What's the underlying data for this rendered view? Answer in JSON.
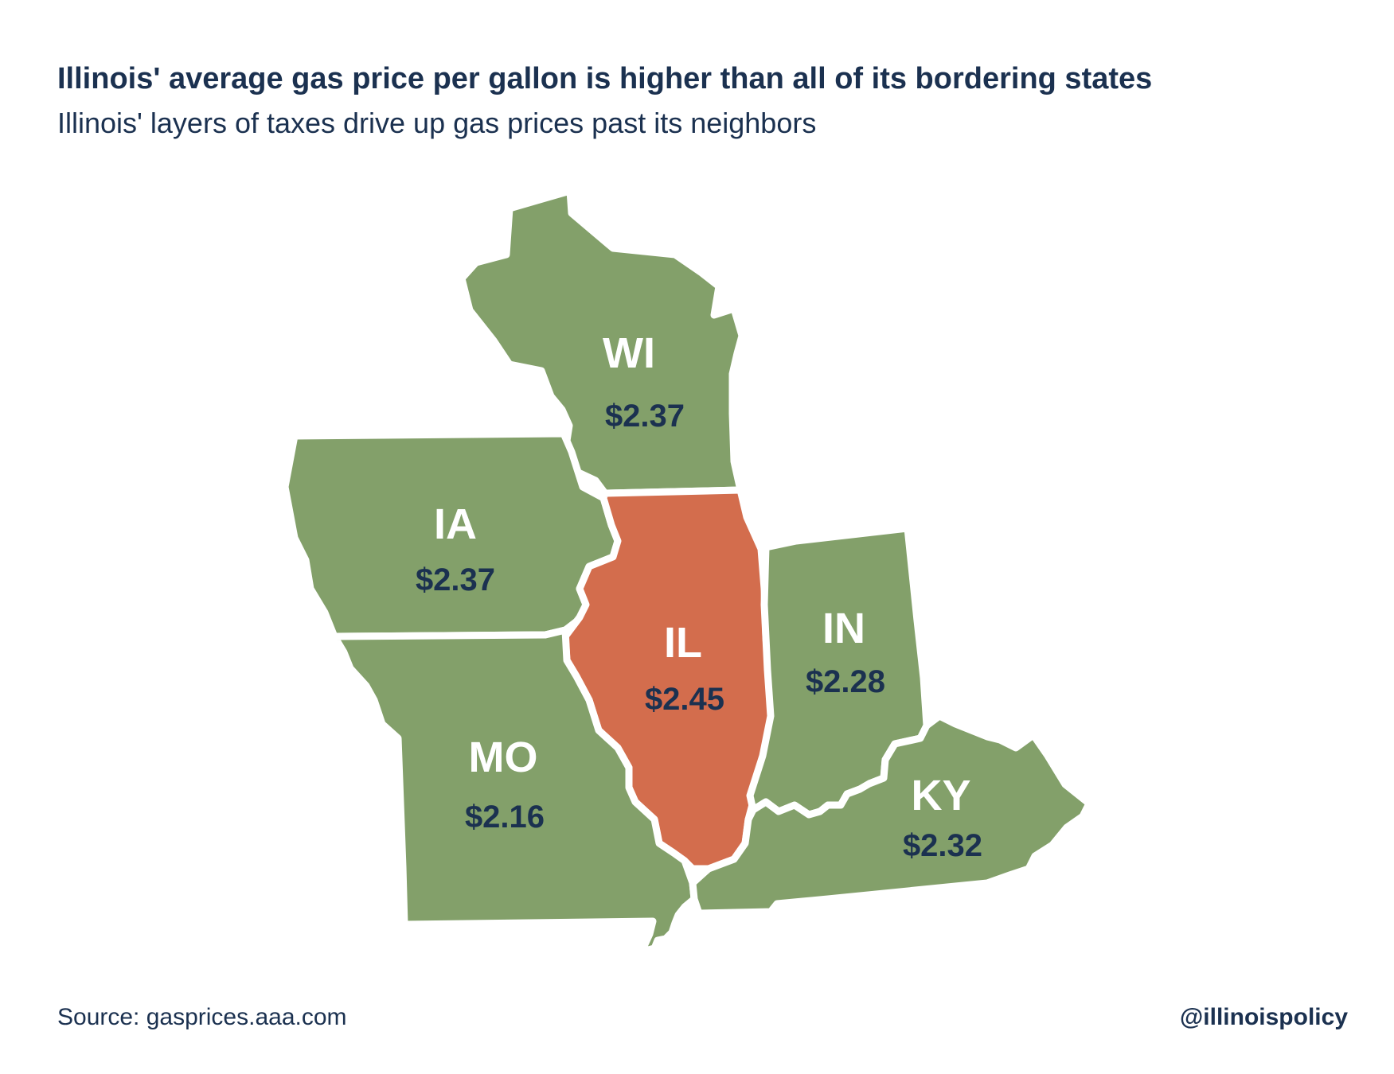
{
  "header": {
    "title": "Illinois' average gas price per gallon is higher than all of its bordering states",
    "subtitle": "Illinois' layers of taxes drive up gas prices past its neighbors"
  },
  "colors": {
    "neighbor_fill": "#83a06a",
    "highlight_fill": "#d36d4d",
    "border": "#ffffff",
    "text_dark": "#1b3150",
    "text_light": "#ffffff"
  },
  "states": {
    "wi": {
      "abbr": "WI",
      "price": "$2.37"
    },
    "ia": {
      "abbr": "IA",
      "price": "$2.37"
    },
    "il": {
      "abbr": "IL",
      "price": "$2.45"
    },
    "in": {
      "abbr": "IN",
      "price": "$2.28"
    },
    "mo": {
      "abbr": "MO",
      "price": "$2.16"
    },
    "ky": {
      "abbr": "KY",
      "price": "$2.32"
    }
  },
  "footer": {
    "source": "Source: gasprices.aaa.com",
    "handle": "@illinoispolicy"
  }
}
